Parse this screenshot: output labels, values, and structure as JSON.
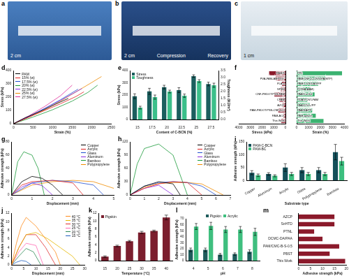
{
  "photos": [
    {
      "panel": "a",
      "labels": [
        "2 cm"
      ]
    },
    {
      "panel": "b",
      "labels": [
        "2 cm",
        "Compression",
        "Recovery"
      ]
    },
    {
      "panel": "c",
      "labels": [
        "1 cm"
      ]
    }
  ],
  "chart_data": [
    {
      "panel": "d",
      "type": "line",
      "xlabel": "Strain (%)",
      "ylabel": "Stress (kPa)",
      "xlim": [
        0,
        2500
      ],
      "xticks": [
        0,
        500,
        1000,
        1500,
        2000,
        2500
      ],
      "ylim": [
        0,
        400
      ],
      "yticks": [
        0,
        100,
        200,
        300,
        400
      ],
      "legend": "upper left",
      "series": [
        {
          "name": "PAM",
          "color": "#000000",
          "x": [
            0,
            300,
            700,
            1100,
            1400
          ],
          "values": [
            0,
            45,
            95,
            150,
            190
          ]
        },
        {
          "name": "15% (w)",
          "color": "#e02020",
          "x": [
            0,
            400,
            800,
            1200,
            1600,
            1800
          ],
          "values": [
            0,
            50,
            100,
            150,
            205,
            240
          ]
        },
        {
          "name": "17.5% (w)",
          "color": "#1f4fd0",
          "x": [
            0,
            400,
            800,
            1200,
            1650
          ],
          "values": [
            0,
            55,
            115,
            180,
            260
          ]
        },
        {
          "name": "20% (w)",
          "color": "#1a9a3a",
          "x": [
            0,
            500,
            1000,
            1500,
            1900,
            2150
          ],
          "values": [
            0,
            50,
            105,
            170,
            235,
            290
          ]
        },
        {
          "name": "22.5% (w)",
          "color": "#8a2be2",
          "x": [
            0,
            400,
            800,
            1200,
            1600,
            1750
          ],
          "values": [
            0,
            55,
            115,
            175,
            240,
            265
          ]
        },
        {
          "name": "25% (w)",
          "color": "#f08c00",
          "x": [
            0,
            400,
            800,
            1200,
            1600,
            2000,
            2250
          ],
          "values": [
            0,
            50,
            105,
            170,
            240,
            310,
            355
          ]
        },
        {
          "name": "27.5% (w)",
          "color": "#e0309a",
          "x": [
            0,
            400,
            800,
            1200,
            1500
          ],
          "values": [
            0,
            60,
            130,
            210,
            290
          ]
        }
      ]
    },
    {
      "panel": "e",
      "type": "bar",
      "xlabel": "Content of C-BCN (%)",
      "ylabel": "Stress (kPa)",
      "y2label": "Toughness (MJ/m³)",
      "categories": [
        "15",
        "17.5",
        "20",
        "22.5",
        "25",
        "27.5"
      ],
      "ylim": [
        0,
        400
      ],
      "yticks": [
        0,
        100,
        200,
        300,
        400
      ],
      "y2lim": [
        0,
        3.5
      ],
      "y2ticks": [
        {
          "value": 0,
          "label": "0.0"
        },
        0.5,
        {
          "value": 1,
          "label": "1.0"
        },
        1.5,
        {
          "value": 2,
          "label": "2.0"
        },
        2.5,
        {
          "value": 3,
          "label": "3.0"
        },
        3.5
      ],
      "legend": "upper left",
      "series": [
        {
          "name": "Stress",
          "color": "#1b5e5e",
          "values": [
            190,
            230,
            265,
            240,
            355,
            290
          ],
          "errors": [
            20,
            25,
            15,
            20,
            10,
            15
          ]
        },
        {
          "name": "Toughness",
          "color": "#3cbf8a",
          "axis": "y2",
          "values": [
            0.85,
            1.6,
            2.0,
            1.7,
            2.75,
            2.45
          ],
          "errors": [
            0.1,
            0.15,
            0.1,
            0.12,
            0.1,
            0.15
          ]
        }
      ]
    },
    {
      "panel": "f",
      "type": "bar",
      "orientation": "horizontal",
      "xlim": [
        0,
        4000
      ],
      "xticks": [
        0,
        1000,
        2000,
        3000,
        4000
      ],
      "series": [
        {
          "name": "Stress (kPa)",
          "color": "#8b1a2b",
          "categories": [
            "PAM/S",
            "PVA-PAM-AMPS/Li⁺",
            "PLA-a",
            "SPEH",
            "CNF-PEDOT:PSS-PAM",
            "CPAM",
            "AZCP",
            "PAM-PEDOT:PSS-CNF-LiCl",
            "PAM-ACC",
            "This Work"
          ],
          "values": [
            1400,
            850,
            300,
            420,
            950,
            520,
            260,
            620,
            180,
            355
          ]
        },
        {
          "name": "Strain (%)",
          "color": "#3cb371",
          "categories": [
            "PP2",
            "PAM/CNF-C-CNTs/PA(MTP)",
            "PAM/1-VS/DA@PP",
            "P(TMA-AAM)",
            "PAA/Ca-Gel",
            "PDA@CNT-PAM",
            "PAA@TiO₂/PP",
            "PAA/SA/PP",
            "PAM-gelatin",
            "This Work"
          ],
          "values": [
            3800,
            2400,
            1800,
            1200,
            1500,
            900,
            1100,
            1300,
            1600,
            2250
          ]
        }
      ]
    },
    {
      "panel": "g",
      "type": "line",
      "xlabel": "Displacement (mm)",
      "ylabel": "Adhesive strength (kPa)",
      "xlim": [
        0,
        5
      ],
      "xticks": [
        0,
        1,
        2,
        3,
        4,
        5
      ],
      "ylim": [
        0,
        80
      ],
      "yticks": [
        0,
        20,
        40,
        60,
        80
      ],
      "legend": "upper right",
      "series": [
        {
          "name": "Copper",
          "color": "#000000",
          "x": [
            0,
            0.5,
            1,
            1.5,
            2,
            2.5
          ],
          "values": [
            0,
            20,
            28,
            25,
            15,
            0
          ]
        },
        {
          "name": "Acrylic",
          "color": "#e02020",
          "x": [
            0,
            0.5,
            1,
            2,
            3,
            3.5
          ],
          "values": [
            0,
            15,
            20,
            22,
            18,
            0
          ]
        },
        {
          "name": "Glass",
          "color": "#1f4fd0",
          "x": [
            0,
            1,
            2,
            3,
            4,
            4.5
          ],
          "values": [
            0,
            18,
            22,
            20,
            15,
            0
          ]
        },
        {
          "name": "Aluminum",
          "color": "#8a2be2",
          "x": [
            0,
            0.5,
            1,
            1.5,
            2
          ],
          "values": [
            0,
            12,
            18,
            14,
            0
          ]
        },
        {
          "name": "Bamboo",
          "color": "#1a9a3a",
          "x": [
            0,
            0.3,
            0.6,
            1,
            1.3,
            1.6
          ],
          "values": [
            0,
            50,
            65,
            60,
            40,
            0
          ]
        },
        {
          "name": "Polypropylene",
          "color": "#f08c00",
          "x": [
            0,
            1,
            2,
            3,
            4,
            5
          ],
          "values": [
            0,
            15,
            20,
            22,
            20,
            10
          ]
        }
      ]
    },
    {
      "panel": "h",
      "type": "line",
      "xlabel": "Displacement (mm)",
      "ylabel": "Adhesive strength (kPa)",
      "xlim": [
        0,
        7
      ],
      "xticks": [
        0,
        1,
        2,
        3,
        4,
        5,
        6,
        7
      ],
      "ylim": [
        0,
        120
      ],
      "yticks": [
        0,
        30,
        60,
        90,
        120
      ],
      "legend": "upper right",
      "series": [
        {
          "name": "Copper",
          "color": "#000000",
          "x": [
            0,
            1,
            2,
            3,
            3.5
          ],
          "values": [
            0,
            20,
            30,
            25,
            0
          ]
        },
        {
          "name": "Acrylic",
          "color": "#e02020",
          "x": [
            0,
            1,
            2,
            3,
            4,
            5
          ],
          "values": [
            0,
            15,
            25,
            30,
            28,
            0
          ]
        },
        {
          "name": "Glass",
          "color": "#1f4fd0",
          "x": [
            0,
            1,
            2,
            3,
            4,
            5,
            6
          ],
          "values": [
            0,
            20,
            28,
            30,
            28,
            20,
            0
          ]
        },
        {
          "name": "Aluminum",
          "color": "#8a2be2",
          "x": [
            0,
            1,
            2,
            3
          ],
          "values": [
            0,
            15,
            22,
            0
          ]
        },
        {
          "name": "Bamboo",
          "color": "#1a9a3a",
          "x": [
            0,
            0.5,
            1,
            2,
            3,
            4
          ],
          "values": [
            0,
            70,
            105,
            115,
            90,
            0
          ]
        },
        {
          "name": "Polypropylene",
          "color": "#f08c00",
          "x": [
            0,
            1,
            2,
            3,
            4,
            5,
            6.5
          ],
          "values": [
            0,
            18,
            26,
            28,
            28,
            25,
            0
          ]
        }
      ]
    },
    {
      "panel": "i",
      "type": "bar",
      "xlabel": "Substrate type",
      "ylabel": "Adhesive strength (kPa)",
      "categories": [
        "Copper",
        "Aluminum",
        "Acrylic",
        "Glass",
        "Polypropylene",
        "Bamboo"
      ],
      "ylim": [
        0,
        150
      ],
      "yticks": [
        0,
        50,
        100,
        150
      ],
      "legend": "upper left",
      "series": [
        {
          "name": "PAM-C-BCN",
          "color": "#14505a",
          "values": [
            30,
            25,
            50,
            40,
            40,
            110
          ],
          "errors": [
            8,
            5,
            15,
            10,
            10,
            30
          ]
        },
        {
          "name": "PAM-BC",
          "color": "#3cbf7f",
          "values": [
            20,
            18,
            25,
            25,
            25,
            75
          ],
          "errors": [
            5,
            4,
            6,
            6,
            6,
            15
          ]
        }
      ]
    },
    {
      "panel": "j",
      "type": "line",
      "xlabel": "Displacement (mm)",
      "ylabel": "Adhesive strength (kPa)",
      "xlim": [
        0,
        30
      ],
      "xticks": [
        0,
        5,
        10,
        15,
        20,
        25,
        30
      ],
      "ylim": [
        0,
        12
      ],
      "yticks": [
        0,
        2,
        4,
        6,
        8,
        10,
        12
      ],
      "legend": "upper right",
      "series": [
        {
          "name": "40 °C",
          "color": "#ff8c1a",
          "x": [
            0,
            2,
            4,
            6,
            10,
            14,
            18,
            20
          ],
          "values": [
            0,
            5,
            9,
            11,
            9,
            6,
            3,
            0
          ]
        },
        {
          "name": "35 °C",
          "color": "#e6b800",
          "x": [
            0,
            3,
            6,
            10,
            15,
            20,
            25,
            28
          ],
          "values": [
            0,
            4,
            7,
            7.5,
            6,
            4,
            2,
            0
          ]
        },
        {
          "name": "30 °C",
          "color": "#e03030",
          "x": [
            0,
            3,
            6,
            10,
            14,
            18
          ],
          "values": [
            0,
            4,
            7,
            7,
            4,
            0
          ]
        },
        {
          "name": "25 °C",
          "color": "#ff69b4",
          "x": [
            0,
            3,
            6,
            10,
            13
          ],
          "values": [
            0,
            3,
            5,
            4.5,
            0
          ]
        },
        {
          "name": "20 °C",
          "color": "#2e8b57",
          "x": [
            0,
            3,
            6,
            9,
            12
          ],
          "values": [
            0,
            2,
            3.8,
            3,
            0
          ]
        },
        {
          "name": "15 °C",
          "color": "#1e5fbf",
          "x": [
            0,
            2,
            4,
            6,
            8
          ],
          "values": [
            0,
            0.6,
            1,
            0.8,
            0
          ]
        }
      ]
    },
    {
      "panel": "k",
      "type": "bar",
      "xlabel": "Temperature (°C)",
      "ylabel": "Adhesive strength (kPa)",
      "categories": [
        "15",
        "20",
        "25",
        "30",
        "35",
        "40"
      ],
      "ylim": [
        0,
        12
      ],
      "yticks": [
        0,
        2,
        4,
        6,
        8,
        10,
        12
      ],
      "legend": "upper left",
      "series": [
        {
          "name": "Pigskin",
          "color": "#7b1e2e",
          "values": [
            1,
            3.7,
            4.9,
            7.1,
            7.5,
            10.9
          ],
          "errors": [
            0.2,
            0.2,
            0.2,
            0.3,
            0.2,
            0.6
          ]
        }
      ]
    },
    {
      "panel": "l",
      "type": "bar",
      "xlabel": "pH",
      "ylabel": "Adhesive strength (kPa)",
      "categories": [
        "4",
        "5",
        "6",
        "7",
        "8"
      ],
      "ylim": [
        0,
        70
      ],
      "yticks": [
        0,
        10,
        20,
        30,
        40,
        50,
        60,
        70
      ],
      "legend": "top",
      "series": [
        {
          "name": "Pigskin",
          "color": "#1f5c5c",
          "values": [
            18,
            18,
            10,
            11,
            15
          ],
          "errors": [
            3,
            3,
            2,
            2,
            3
          ]
        },
        {
          "name": "Acrylic",
          "color": "#3fbf7f",
          "values": [
            57,
            58,
            52,
            52,
            48
          ],
          "errors": [
            5,
            6,
            5,
            5,
            6
          ]
        }
      ]
    },
    {
      "panel": "m",
      "type": "bar",
      "orientation": "horizontal",
      "xlabel": "Adhesive strength (kPa)",
      "categories": [
        "AZCP",
        "SnHTD",
        "PTNL",
        "DCMC-DA/PAA",
        "PAM/CMC-B-S-0.5",
        "PBST",
        "This Work"
      ],
      "values": [
        15,
        15,
        6.5,
        10,
        17,
        13,
        19.5
      ],
      "color": "#8b1a2b",
      "xlim": [
        0,
        20
      ],
      "xticks": [
        0,
        5,
        10,
        15,
        20
      ]
    }
  ]
}
